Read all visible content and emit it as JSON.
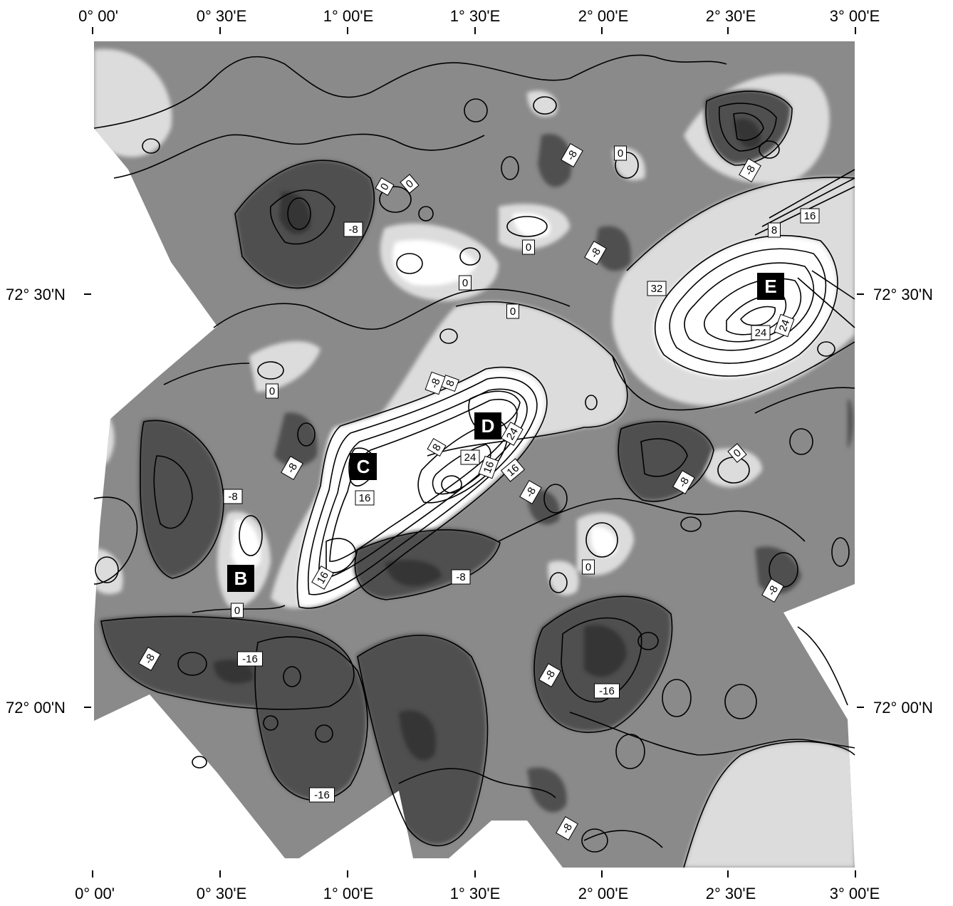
{
  "longitude_labels": [
    "0° 00'",
    "0° 30'E",
    "1° 00'E",
    "1° 30'E",
    "2° 00'E",
    "2° 30'E",
    "3° 00'E"
  ],
  "latitude_labels": {
    "upper": "72° 30'N",
    "lower": "72° 00'N"
  },
  "sites": [
    "B",
    "C",
    "D",
    "E"
  ],
  "contour_labels": [
    "0",
    "0",
    "0",
    "0",
    "0",
    "0",
    "0",
    "0",
    "0",
    "0",
    "8",
    "8",
    "8",
    "16",
    "16",
    "16",
    "16",
    "16",
    "24",
    "24",
    "24",
    "24",
    "32",
    "-8",
    "-8",
    "-8",
    "-8",
    "-8",
    "-8",
    "-8",
    "-8",
    "-8",
    "-8",
    "-8",
    "-8",
    "-8",
    "-8",
    "-16",
    "-16",
    "-16"
  ],
  "colors": {
    "background": "#8a8a8a",
    "light": "#dcdcdc",
    "high": "#ffffff",
    "low": "#505050",
    "lowest": "#353535",
    "contour": "#000000"
  }
}
